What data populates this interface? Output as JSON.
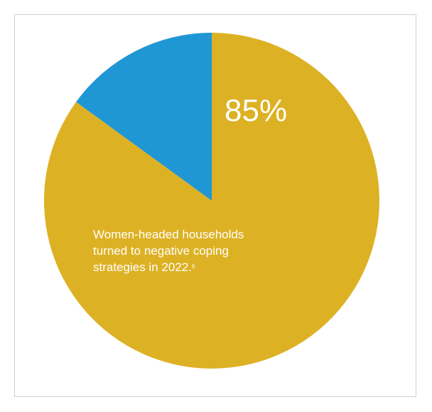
{
  "chart_data": {
    "type": "pie",
    "title": "",
    "slices": [
      {
        "label": "Women-headed households turned to negative coping strategies in 2022",
        "value": 85,
        "color": "#DDB124"
      },
      {
        "label": "",
        "value": 15,
        "color": "#1F97D4"
      }
    ],
    "data_label": "85%",
    "annotation": {
      "lines": [
        "Women-headed households",
        "turned to negative coping",
        "strategies in 2022."
      ],
      "footnote": "6"
    }
  }
}
